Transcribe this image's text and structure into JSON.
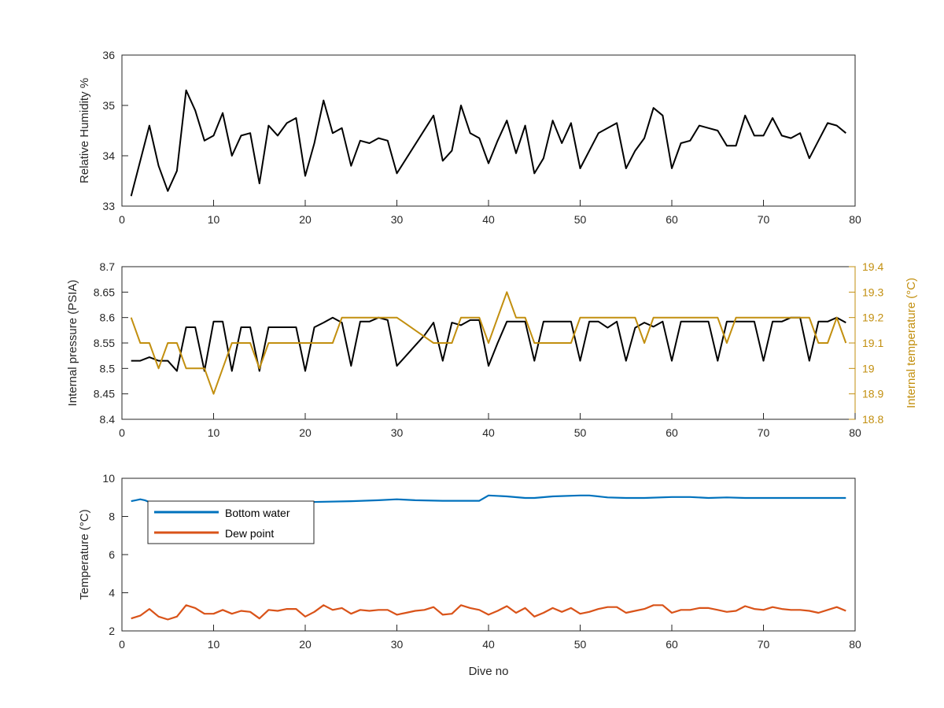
{
  "colors": {
    "black": "#000000",
    "gold": "#c28f0f",
    "blue": "#0072bd",
    "orange": "#d95319",
    "axis": "#262626"
  },
  "chart_data": [
    {
      "type": "line",
      "xlim": [
        0,
        80
      ],
      "ylim": [
        33,
        36
      ],
      "xticks": [
        "0",
        "10",
        "20",
        "30",
        "40",
        "50",
        "60",
        "70",
        "80"
      ],
      "yticks": [
        "33",
        "34",
        "35",
        "36"
      ],
      "ylabel": "Relative Humidity %",
      "grid": false,
      "series": [
        {
          "color": "#000000",
          "x": [
            1,
            3,
            4,
            5,
            6,
            7,
            8,
            9,
            10,
            11,
            12,
            13,
            14,
            15,
            16,
            17,
            18,
            19,
            20,
            21,
            22,
            23,
            24,
            25,
            26,
            27,
            28,
            29,
            30,
            34,
            35,
            36,
            37,
            38,
            39,
            40,
            41,
            42,
            43,
            44,
            45,
            46,
            47,
            48,
            49,
            50,
            52,
            54,
            55,
            56,
            57,
            58,
            59,
            60,
            61,
            62,
            63,
            64,
            65,
            66,
            67,
            68,
            69,
            70,
            71,
            72,
            73,
            74,
            75,
            76,
            77,
            78,
            79
          ],
          "y": [
            33.2,
            34.6,
            33.8,
            33.3,
            33.7,
            35.3,
            34.9,
            34.3,
            34.4,
            34.85,
            34.0,
            34.4,
            34.45,
            33.45,
            34.6,
            34.4,
            34.65,
            34.75,
            33.6,
            34.25,
            35.1,
            34.45,
            34.55,
            33.8,
            34.3,
            34.25,
            34.35,
            34.3,
            33.65,
            34.8,
            33.9,
            34.1,
            35.0,
            34.45,
            34.35,
            33.85,
            34.3,
            34.7,
            34.05,
            34.6,
            33.65,
            33.95,
            34.7,
            34.25,
            34.65,
            33.75,
            34.45,
            34.65,
            33.75,
            34.1,
            34.35,
            34.95,
            34.8,
            33.75,
            34.25,
            34.3,
            34.6,
            34.55,
            34.5,
            34.2,
            34.2,
            34.8,
            34.4,
            34.4,
            34.75,
            34.4,
            34.35,
            34.45,
            33.95,
            34.3,
            34.65,
            34.6,
            34.45
          ]
        }
      ]
    },
    {
      "type": "line",
      "xlim": [
        0,
        80
      ],
      "ylim": [
        8.4,
        8.7
      ],
      "y2lim": [
        18.8,
        19.4
      ],
      "xticks": [
        "0",
        "10",
        "20",
        "30",
        "40",
        "50",
        "60",
        "70",
        "80"
      ],
      "yticks": [
        "8.4",
        "8.45",
        "8.5",
        "8.55",
        "8.6",
        "8.65",
        "8.7"
      ],
      "y2ticks": [
        "18.8",
        "18.9",
        "19",
        "19.1",
        "19.2",
        "19.3",
        "19.4"
      ],
      "ylabel": "Internal pressure (PSIA)",
      "y2label": "Internal temperature (°C)",
      "grid": false,
      "series": [
        {
          "axis": "left",
          "color": "#000000",
          "x": [
            1,
            2,
            3,
            4,
            5,
            6,
            7,
            8,
            9,
            10,
            11,
            12,
            13,
            14,
            15,
            16,
            17,
            18,
            19,
            20,
            21,
            22,
            23,
            24,
            25,
            26,
            27,
            28,
            29,
            30,
            31,
            32,
            33,
            34,
            35,
            36,
            37,
            38,
            39,
            40,
            41,
            42,
            43,
            44,
            45,
            46,
            47,
            48,
            49,
            50,
            51,
            52,
            53,
            54,
            55,
            56,
            57,
            58,
            59,
            60,
            61,
            62,
            63,
            64,
            65,
            66,
            67,
            68,
            69,
            70,
            71,
            72,
            73,
            74,
            75,
            76,
            77,
            78,
            79
          ],
          "y": [
            8.515,
            8.515,
            8.522,
            8.515,
            8.515,
            8.495,
            8.581,
            8.581,
            8.495,
            8.592,
            8.592,
            8.495,
            8.581,
            8.581,
            8.495,
            8.581,
            8.581,
            8.581,
            8.581,
            8.495,
            8.581,
            8.59,
            8.6,
            8.59,
            8.505,
            8.592,
            8.592,
            8.6,
            8.595,
            8.505,
            8.525,
            8.545,
            8.565,
            8.59,
            8.515,
            8.59,
            8.585,
            8.595,
            8.595,
            8.505,
            8.55,
            8.592,
            8.592,
            8.592,
            8.515,
            8.592,
            8.592,
            8.592,
            8.592,
            8.515,
            8.592,
            8.592,
            8.58,
            8.592,
            8.515,
            8.58,
            8.59,
            8.582,
            8.592,
            8.515,
            8.592,
            8.592,
            8.592,
            8.592,
            8.515,
            8.592,
            8.592,
            8.592,
            8.592,
            8.515,
            8.592,
            8.592,
            8.6,
            8.6,
            8.515,
            8.592,
            8.592,
            8.6,
            8.59
          ]
        },
        {
          "axis": "right",
          "color": "#c28f0f",
          "x": [
            1,
            2,
            3,
            4,
            5,
            6,
            7,
            8,
            9,
            10,
            11,
            12,
            13,
            14,
            15,
            16,
            17,
            18,
            19,
            20,
            21,
            22,
            23,
            24,
            25,
            26,
            27,
            28,
            29,
            30,
            31,
            32,
            33,
            34,
            35,
            36,
            37,
            38,
            39,
            40,
            41,
            42,
            43,
            44,
            45,
            46,
            47,
            48,
            49,
            50,
            51,
            52,
            53,
            54,
            55,
            56,
            57,
            58,
            59,
            60,
            61,
            62,
            63,
            64,
            65,
            66,
            67,
            68,
            69,
            70,
            71,
            72,
            73,
            74,
            75,
            76,
            77,
            78,
            79
          ],
          "y": [
            19.2,
            19.1,
            19.1,
            19.0,
            19.1,
            19.1,
            19.0,
            19.0,
            19.0,
            18.9,
            19.0,
            19.1,
            19.1,
            19.1,
            19.0,
            19.1,
            19.1,
            19.1,
            19.1,
            19.1,
            19.1,
            19.1,
            19.1,
            19.2,
            19.2,
            19.2,
            19.2,
            19.2,
            19.2,
            19.2,
            19.175,
            19.15,
            19.125,
            19.1,
            19.1,
            19.1,
            19.2,
            19.2,
            19.2,
            19.1,
            19.2,
            19.3,
            19.2,
            19.2,
            19.1,
            19.1,
            19.1,
            19.1,
            19.1,
            19.2,
            19.2,
            19.2,
            19.2,
            19.2,
            19.2,
            19.2,
            19.1,
            19.2,
            19.2,
            19.2,
            19.2,
            19.2,
            19.2,
            19.2,
            19.2,
            19.1,
            19.2,
            19.2,
            19.2,
            19.2,
            19.2,
            19.2,
            19.2,
            19.2,
            19.2,
            19.1,
            19.1,
            19.2,
            19.1
          ]
        }
      ]
    },
    {
      "type": "line",
      "xlim": [
        0,
        80
      ],
      "ylim": [
        2,
        10
      ],
      "xticks": [
        "0",
        "10",
        "20",
        "30",
        "40",
        "50",
        "60",
        "70",
        "80"
      ],
      "yticks": [
        "2",
        "4",
        "6",
        "8",
        "10"
      ],
      "xlabel": "Dive no",
      "ylabel": "Temperature (°C)",
      "grid": false,
      "legend": {
        "placement": "top-left"
      },
      "series": [
        {
          "name": "Bottom water",
          "color": "#0072bd",
          "x": [
            1,
            1.5,
            2,
            2.5,
            3,
            5,
            10,
            15,
            20,
            25,
            28,
            30,
            32,
            35,
            39,
            40,
            42,
            44,
            45,
            47,
            50,
            51,
            53,
            55,
            57,
            60,
            62,
            64,
            66,
            68,
            70,
            75,
            79
          ],
          "y": [
            8.8,
            8.85,
            8.9,
            8.85,
            8.75,
            8.7,
            8.72,
            8.75,
            8.75,
            8.8,
            8.85,
            8.9,
            8.85,
            8.82,
            8.82,
            9.1,
            9.05,
            8.97,
            8.97,
            9.05,
            9.1,
            9.1,
            9.0,
            8.97,
            8.97,
            9.02,
            9.02,
            8.97,
            9.0,
            8.97,
            8.97,
            8.97,
            8.97
          ]
        },
        {
          "name": "Dew point",
          "color": "#d95319",
          "x": [
            1,
            2,
            3,
            4,
            5,
            6,
            7,
            8,
            9,
            10,
            11,
            12,
            13,
            14,
            15,
            16,
            17,
            18,
            19,
            20,
            21,
            22,
            23,
            24,
            25,
            26,
            27,
            28,
            29,
            30,
            31,
            32,
            33,
            34,
            35,
            36,
            37,
            38,
            39,
            40,
            41,
            42,
            43,
            44,
            45,
            46,
            47,
            48,
            49,
            50,
            51,
            52,
            53,
            54,
            55,
            56,
            57,
            58,
            59,
            60,
            61,
            62,
            63,
            64,
            65,
            66,
            67,
            68,
            69,
            70,
            71,
            72,
            73,
            74,
            75,
            76,
            77,
            78,
            79
          ],
          "y": [
            2.65,
            2.8,
            3.15,
            2.75,
            2.6,
            2.75,
            3.35,
            3.2,
            2.9,
            2.9,
            3.1,
            2.9,
            3.05,
            3.0,
            2.65,
            3.1,
            3.05,
            3.15,
            3.15,
            2.75,
            3.0,
            3.35,
            3.1,
            3.2,
            2.9,
            3.1,
            3.05,
            3.1,
            3.1,
            2.85,
            2.95,
            3.05,
            3.1,
            3.25,
            2.85,
            2.9,
            3.35,
            3.2,
            3.1,
            2.85,
            3.05,
            3.3,
            2.95,
            3.2,
            2.75,
            2.95,
            3.2,
            3.0,
            3.2,
            2.9,
            3.0,
            3.15,
            3.25,
            3.25,
            2.95,
            3.05,
            3.15,
            3.35,
            3.35,
            2.95,
            3.1,
            3.1,
            3.2,
            3.2,
            3.1,
            3.0,
            3.05,
            3.3,
            3.15,
            3.1,
            3.25,
            3.15,
            3.1,
            3.1,
            3.05,
            2.95,
            3.1,
            3.25,
            3.05
          ]
        }
      ]
    }
  ]
}
